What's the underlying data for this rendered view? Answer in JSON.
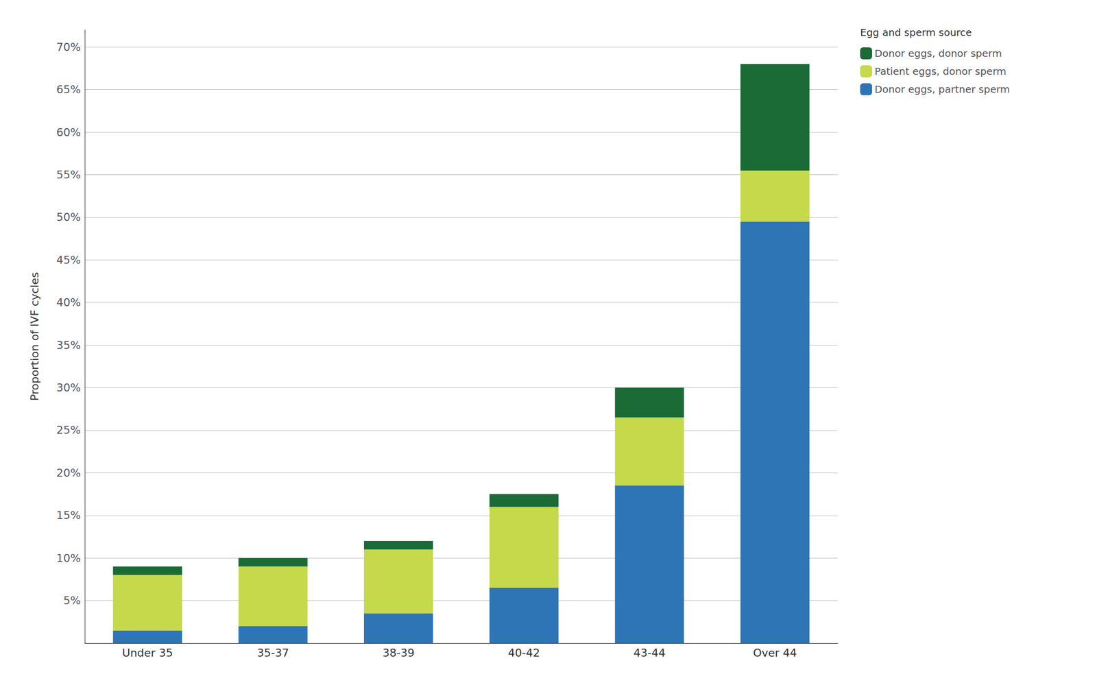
{
  "chart_data": {
    "type": "bar",
    "stacked": true,
    "categories": [
      "Under 35",
      "35-37",
      "38-39",
      "40-42",
      "43-44",
      "Over 44"
    ],
    "series": [
      {
        "name": "Donor eggs, partner sperm",
        "color": "#2E75B6",
        "values": [
          1.5,
          2.0,
          3.5,
          6.5,
          18.5,
          49.5
        ]
      },
      {
        "name": "Patient eggs, donor sperm",
        "color": "#C5D94A",
        "values": [
          6.5,
          7.0,
          7.5,
          9.5,
          8.0,
          6.0
        ]
      },
      {
        "name": "Donor eggs, donor sperm",
        "color": "#1A6B35",
        "values": [
          1.0,
          1.0,
          1.0,
          1.5,
          3.5,
          12.5
        ]
      }
    ],
    "legend_title": "Egg and sperm source",
    "legend": "upper right",
    "ylabel": "Proportion of IVF cycles",
    "ylim": [
      0,
      72
    ],
    "yticks": [
      {
        "value": 5,
        "label": "5%"
      },
      {
        "value": 10,
        "label": "10%"
      },
      {
        "value": 15,
        "label": "15%"
      },
      {
        "value": 20,
        "label": "20%"
      },
      {
        "value": 25,
        "label": "25%"
      },
      {
        "value": 30,
        "label": "30%"
      },
      {
        "value": 35,
        "label": "35%"
      },
      {
        "value": 40,
        "label": "40%"
      },
      {
        "value": 45,
        "label": "45%"
      },
      {
        "value": 50,
        "label": "50%"
      },
      {
        "value": 55,
        "label": "55%"
      },
      {
        "value": 60,
        "label": "60%"
      },
      {
        "value": 65,
        "label": "65%"
      },
      {
        "value": 70,
        "label": "70%"
      }
    ],
    "grid": true
  }
}
